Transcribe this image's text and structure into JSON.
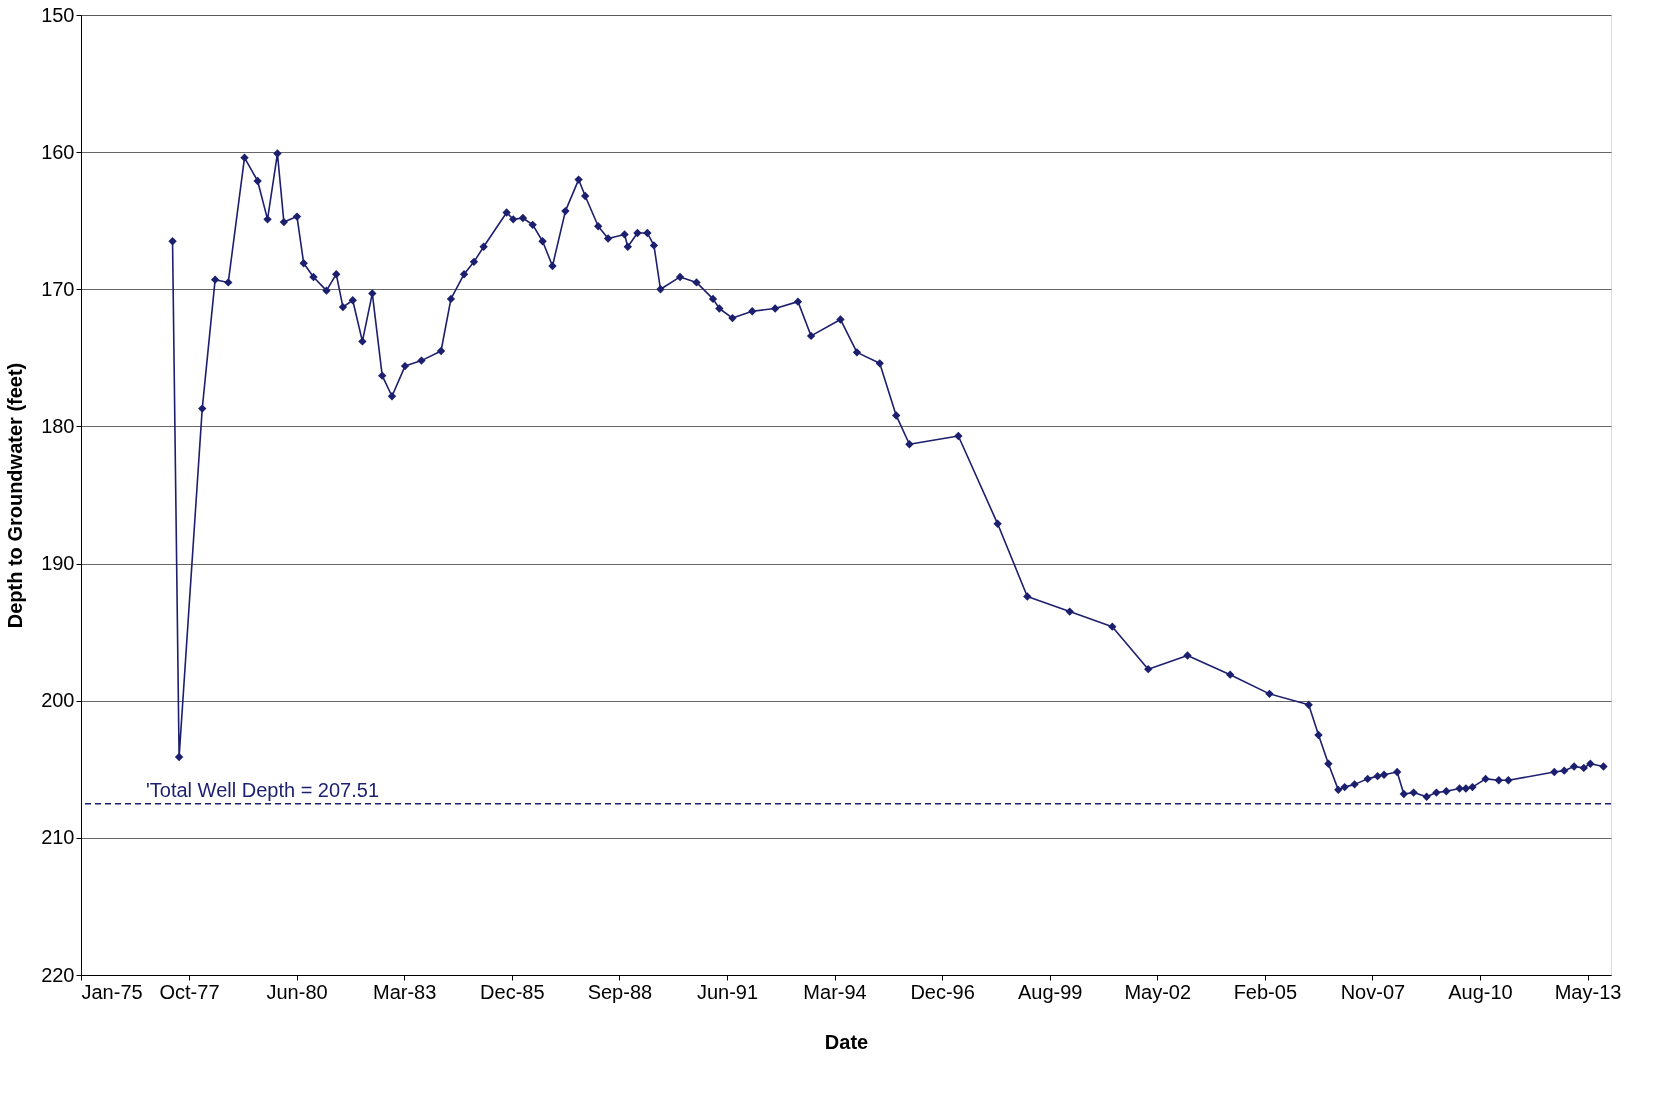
{
  "chart_data": {
    "type": "line",
    "xlabel": "Date",
    "ylabel": "Depth to Groundwater (feet)",
    "x": [
      "1977-05",
      "1977-07",
      "1978-02",
      "1978-06",
      "1978-10",
      "1979-03",
      "1979-07",
      "1979-10",
      "1980-01",
      "1980-03",
      "1980-07",
      "1980-09",
      "1980-12",
      "1981-04",
      "1981-07",
      "1981-09",
      "1981-12",
      "1982-03",
      "1982-06",
      "1982-09",
      "1982-12",
      "1983-04",
      "1983-09",
      "1984-03",
      "1984-06",
      "1984-10",
      "1985-01",
      "1985-04",
      "1985-11",
      "1986-01",
      "1986-04",
      "1986-07",
      "1986-10",
      "1987-01",
      "1987-05",
      "1987-09",
      "1987-11",
      "1988-03",
      "1988-06",
      "1988-11",
      "1988-12",
      "1989-03",
      "1989-06",
      "1989-08",
      "1989-10",
      "1990-04",
      "1990-09",
      "1991-02",
      "1991-04",
      "1991-08",
      "1992-02",
      "1992-09",
      "1993-04",
      "1993-08",
      "1994-05",
      "1994-10",
      "1995-05",
      "1995-10",
      "1996-02",
      "1997-05",
      "1998-05",
      "1999-02",
      "2000-03",
      "2001-04",
      "2002-03",
      "2003-03",
      "2004-04",
      "2005-04",
      "2006-04",
      "2006-07",
      "2006-10",
      "2007-01",
      "2007-03",
      "2007-06",
      "2007-10",
      "2008-01",
      "2008-03",
      "2008-07",
      "2008-09",
      "2008-12",
      "2009-04",
      "2009-07",
      "2009-10",
      "2010-02",
      "2010-04",
      "2010-06",
      "2010-10",
      "2011-02",
      "2011-05",
      "2012-07",
      "2012-10",
      "2013-01",
      "2013-04",
      "2013-06",
      "2013-10"
    ],
    "series": [
      {
        "color": "#1c1f6e",
        "values": [
          166.5,
          204.1,
          178.7,
          169.3,
          169.5,
          160.4,
          162.1,
          164.9,
          160.1,
          165.1,
          164.7,
          168.1,
          169.1,
          170.1,
          168.9,
          171.3,
          170.8,
          173.8,
          170.3,
          176.3,
          177.8,
          175.6,
          175.2,
          174.5,
          170.7,
          168.9,
          168.0,
          166.9,
          164.4,
          164.9,
          164.8,
          165.3,
          166.5,
          168.3,
          164.3,
          162.0,
          163.2,
          165.4,
          166.3,
          166.0,
          166.9,
          165.9,
          165.9,
          166.8,
          170.0,
          169.1,
          169.5,
          170.7,
          171.4,
          172.1,
          171.6,
          171.4,
          170.9,
          173.4,
          172.2,
          174.6,
          175.4,
          179.2,
          181.3,
          180.7,
          187.1,
          192.4,
          193.5,
          194.6,
          197.7,
          196.7,
          198.1,
          199.5,
          200.3,
          202.5,
          204.6,
          206.5,
          206.3,
          206.1,
          205.7,
          205.5,
          205.4,
          205.2,
          206.8,
          206.7,
          207.0,
          206.7,
          206.6,
          206.4,
          206.4,
          206.3,
          205.7,
          205.8,
          205.8,
          205.2,
          205.1,
          204.8,
          204.9,
          204.6,
          204.8
        ]
      }
    ],
    "xlim": [
      "1975-01-01",
      "2013-12-10"
    ],
    "xticks": [
      {
        "value": "1975-01-01",
        "label": "Jan-75"
      },
      {
        "value": "1977-10-01",
        "label": "Oct-77"
      },
      {
        "value": "1980-06-27",
        "label": "Jun-80"
      },
      {
        "value": "1983-03-24",
        "label": "Mar-83"
      },
      {
        "value": "1985-12-19",
        "label": "Dec-85"
      },
      {
        "value": "1988-09-14",
        "label": "Sep-88"
      },
      {
        "value": "1991-06-11",
        "label": "Jun-91"
      },
      {
        "value": "1994-03-07",
        "label": "Mar-94"
      },
      {
        "value": "1996-12-01",
        "label": "Dec-96"
      },
      {
        "value": "1999-08-28",
        "label": "Aug-99"
      },
      {
        "value": "2002-05-24",
        "label": "May-02"
      },
      {
        "value": "2005-02-17",
        "label": "Feb-05"
      },
      {
        "value": "2007-11-14",
        "label": "Nov-07"
      },
      {
        "value": "2010-08-10",
        "label": "Aug-10"
      },
      {
        "value": "2013-05-06",
        "label": "May-13"
      }
    ],
    "ylim": [
      220,
      150
    ],
    "yticks": [
      150,
      160,
      170,
      180,
      190,
      200,
      210,
      220
    ],
    "ref_lines": [
      {
        "axis": "y",
        "value": 207.51,
        "label": "'Total Well Depth = 207.51",
        "color": "#1c1f6e",
        "line_style": "dashed"
      }
    ],
    "grid": "y",
    "marker": "diamond",
    "line_style": "solid"
  }
}
